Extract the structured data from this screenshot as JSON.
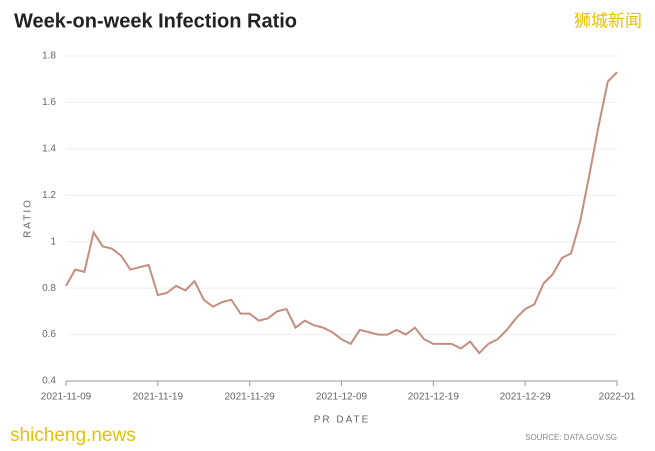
{
  "chart_data": {
    "type": "line",
    "title": "Week-on-week Infection Ratio",
    "watermark": "狮城新闻",
    "site": "shicheng.news",
    "y_label": "RATIO",
    "x_label": "PR DATE",
    "source": "SOURCE: DATA.GOV.SG",
    "x": [
      "2021-11-09",
      "2021-11-10",
      "2021-11-11",
      "2021-11-12",
      "2021-11-13",
      "2021-11-14",
      "2021-11-15",
      "2021-11-16",
      "2021-11-17",
      "2021-11-18",
      "2021-11-19",
      "2021-11-20",
      "2021-11-21",
      "2021-11-22",
      "2021-11-23",
      "2021-11-24",
      "2021-11-25",
      "2021-11-26",
      "2021-11-27",
      "2021-11-28",
      "2021-11-29",
      "2021-11-30",
      "2021-12-01",
      "2021-12-02",
      "2021-12-03",
      "2021-12-04",
      "2021-12-05",
      "2021-12-06",
      "2021-12-07",
      "2021-12-08",
      "2021-12-09",
      "2021-12-10",
      "2021-12-11",
      "2021-12-12",
      "2021-12-13",
      "2021-12-14",
      "2021-12-15",
      "2021-12-16",
      "2021-12-17",
      "2021-12-18",
      "2021-12-19",
      "2021-12-20",
      "2021-12-21",
      "2021-12-22",
      "2021-12-23",
      "2021-12-24",
      "2021-12-25",
      "2021-12-26",
      "2021-12-27",
      "2021-12-28",
      "2021-12-29",
      "2021-12-30",
      "2021-12-31",
      "2022-01-01",
      "2022-01-02",
      "2022-01-03",
      "2022-01-04",
      "2022-01-05",
      "2022-01-06",
      "2022-01-07",
      "2022-01-08"
    ],
    "series": [
      {
        "name": "Ratio",
        "color": "#c48e80",
        "values": [
          0.81,
          0.88,
          0.87,
          1.04,
          0.98,
          0.97,
          0.94,
          0.88,
          0.89,
          0.9,
          0.77,
          0.78,
          0.81,
          0.79,
          0.83,
          0.75,
          0.72,
          0.74,
          0.75,
          0.69,
          0.69,
          0.66,
          0.67,
          0.7,
          0.71,
          0.63,
          0.66,
          0.64,
          0.63,
          0.61,
          0.58,
          0.56,
          0.62,
          0.61,
          0.6,
          0.6,
          0.62,
          0.6,
          0.63,
          0.58,
          0.56,
          0.56,
          0.56,
          0.54,
          0.57,
          0.52,
          0.56,
          0.58,
          0.62,
          0.67,
          0.71,
          0.73,
          0.82,
          0.86,
          0.93,
          0.95,
          1.09,
          1.29,
          1.5,
          1.69,
          1.73
        ]
      }
    ],
    "xlim": [
      "2021-11-09",
      "2022-01-08"
    ],
    "xticks": [
      "2021-11-09",
      "2021-11-19",
      "2021-11-29",
      "2021-12-09",
      "2021-12-19",
      "2021-12-29",
      {
        "value": "2022-01-08",
        "label": "2022-01"
      }
    ],
    "ylim": [
      0.4,
      1.8
    ],
    "yticks": [
      0.4,
      0.6,
      0.8,
      1,
      1.2,
      1.4,
      1.6,
      1.8
    ],
    "grid": true
  }
}
